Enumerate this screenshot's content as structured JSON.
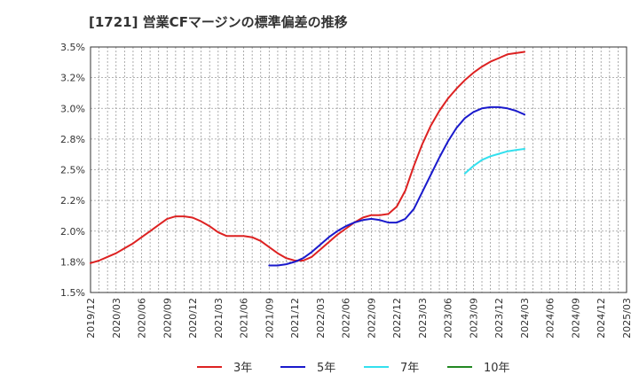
{
  "chart_data": {
    "type": "line",
    "title": "[1721]  営業CFマージンの標準偏差の推移",
    "xlabel": "",
    "ylabel": "",
    "ylim": [
      1.5,
      3.5
    ],
    "yticks": [
      "1.5%",
      "1.8%",
      "2.0%",
      "2.2%",
      "2.5%",
      "2.8%",
      "3.0%",
      "3.2%",
      "3.5%"
    ],
    "ytick_values": [
      1.5,
      1.75,
      2.0,
      2.25,
      2.5,
      2.75,
      3.0,
      3.25,
      3.5
    ],
    "x_start": "2019/12",
    "x_end": "2025/03",
    "xticks": [
      "2019/12",
      "2020/03",
      "2020/06",
      "2020/09",
      "2020/12",
      "2021/03",
      "2021/06",
      "2021/09",
      "2021/12",
      "2022/03",
      "2022/06",
      "2022/09",
      "2022/12",
      "2023/03",
      "2023/06",
      "2023/09",
      "2023/12",
      "2024/03",
      "2024/06",
      "2024/09",
      "2024/12",
      "2025/03"
    ],
    "grid": true,
    "legend_position": "bottom",
    "series": [
      {
        "name": "3年",
        "color": "#dd2222",
        "x": [
          "2019/12",
          "2020/01",
          "2020/02",
          "2020/03",
          "2020/04",
          "2020/05",
          "2020/06",
          "2020/07",
          "2020/08",
          "2020/09",
          "2020/10",
          "2020/11",
          "2020/12",
          "2021/01",
          "2021/02",
          "2021/03",
          "2021/04",
          "2021/05",
          "2021/06",
          "2021/07",
          "2021/08",
          "2021/09",
          "2021/10",
          "2021/11",
          "2021/12",
          "2022/01",
          "2022/02",
          "2022/03",
          "2022/04",
          "2022/05",
          "2022/06",
          "2022/07",
          "2022/08",
          "2022/09",
          "2022/10",
          "2022/11",
          "2022/12",
          "2023/01",
          "2023/02",
          "2023/03",
          "2023/04",
          "2023/05",
          "2023/06",
          "2023/07",
          "2023/08",
          "2023/09",
          "2023/10",
          "2023/11",
          "2023/12",
          "2024/01",
          "2024/02",
          "2024/03"
        ],
        "values": [
          1.74,
          1.76,
          1.79,
          1.82,
          1.86,
          1.9,
          1.95,
          2.0,
          2.05,
          2.1,
          2.12,
          2.12,
          2.11,
          2.08,
          2.04,
          1.99,
          1.96,
          1.96,
          1.96,
          1.95,
          1.92,
          1.87,
          1.82,
          1.78,
          1.76,
          1.76,
          1.79,
          1.85,
          1.91,
          1.97,
          2.02,
          2.07,
          2.11,
          2.13,
          2.13,
          2.14,
          2.2,
          2.33,
          2.53,
          2.71,
          2.86,
          2.98,
          3.08,
          3.16,
          3.23,
          3.29,
          3.34,
          3.38,
          3.41,
          3.44,
          3.45,
          3.46
        ]
      },
      {
        "name": "5年",
        "color": "#1a1acc",
        "x": [
          "2021/09",
          "2021/10",
          "2021/11",
          "2021/12",
          "2022/01",
          "2022/02",
          "2022/03",
          "2022/04",
          "2022/05",
          "2022/06",
          "2022/07",
          "2022/08",
          "2022/09",
          "2022/10",
          "2022/11",
          "2022/12",
          "2023/01",
          "2023/02",
          "2023/03",
          "2023/04",
          "2023/05",
          "2023/06",
          "2023/07",
          "2023/08",
          "2023/09",
          "2023/10",
          "2023/11",
          "2023/12",
          "2024/01",
          "2024/02",
          "2024/03"
        ],
        "values": [
          1.72,
          1.72,
          1.73,
          1.75,
          1.78,
          1.83,
          1.89,
          1.95,
          2.0,
          2.04,
          2.07,
          2.09,
          2.1,
          2.09,
          2.07,
          2.07,
          2.1,
          2.18,
          2.32,
          2.46,
          2.6,
          2.73,
          2.84,
          2.92,
          2.97,
          3.0,
          3.01,
          3.01,
          3.0,
          2.98,
          2.95
        ]
      },
      {
        "name": "7年",
        "color": "#33e0ee",
        "x": [
          "2023/08",
          "2023/09",
          "2023/10",
          "2023/11",
          "2023/12",
          "2024/01",
          "2024/02",
          "2024/03"
        ],
        "values": [
          2.47,
          2.53,
          2.58,
          2.61,
          2.63,
          2.65,
          2.66,
          2.67
        ]
      },
      {
        "name": "10年",
        "color": "#228822",
        "x": [],
        "values": []
      }
    ]
  }
}
